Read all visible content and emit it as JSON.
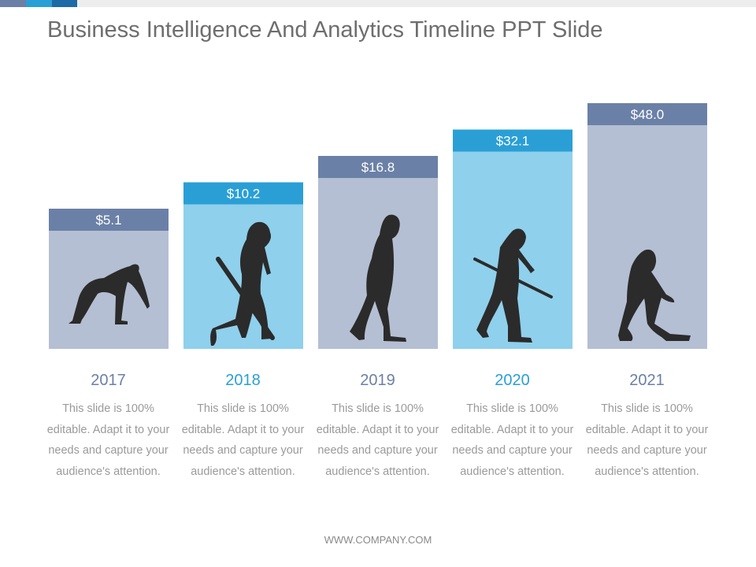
{
  "slide": {
    "title": "Business Intelligence And Analytics Timeline PPT Slide",
    "footer": "WWW.COMPANY.COM"
  },
  "colors": {
    "accent_slate": "#6b80a6",
    "accent_blue": "#2a9fd6",
    "accent_dark_blue": "#1d6aa6",
    "bar_light_slate": "#b4bfd3",
    "bar_light_blue": "#8fd0ec",
    "silhouette": "#2b2b2b"
  },
  "chart_data": {
    "type": "bar",
    "categories": [
      "2017",
      "2018",
      "2019",
      "2020",
      "2021"
    ],
    "values": [
      5.1,
      10.2,
      16.8,
      32.1,
      48.0
    ],
    "value_labels": [
      "$5.1",
      "$10.2",
      "$16.8",
      "$32.1",
      "$48.0"
    ],
    "title": "",
    "xlabel": "",
    "ylabel": ""
  },
  "columns": [
    {
      "year": "2017",
      "label": "$5.1",
      "text": "This slide is 100% editable. Adapt it to your needs and capture your audience's attention.",
      "icon": "crouching-ape-silhouette-icon"
    },
    {
      "year": "2018",
      "label": "$10.2",
      "text": "This slide is 100% editable. Adapt it to your needs and capture your audience's attention.",
      "icon": "walking-ape-with-stick-silhouette-icon"
    },
    {
      "year": "2019",
      "label": "$16.8",
      "text": "This slide is 100% editable. Adapt it to your needs and capture your audience's attention.",
      "icon": "early-human-silhouette-icon"
    },
    {
      "year": "2020",
      "label": "$32.1",
      "text": "This slide is 100% editable. Adapt it to your needs and capture your audience's attention.",
      "icon": "human-with-spear-silhouette-icon"
    },
    {
      "year": "2021",
      "label": "$48.0",
      "text": "This slide is 100% editable. Adapt it to your needs and capture your audience's attention.",
      "icon": "modern-human-silhouette-icon"
    }
  ]
}
